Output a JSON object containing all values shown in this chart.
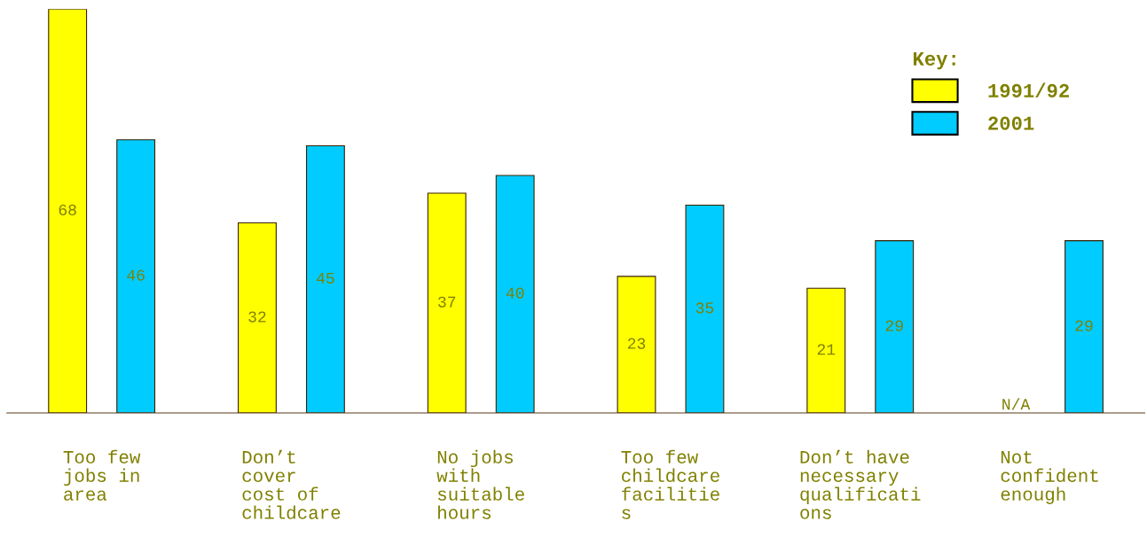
{
  "chart_data": {
    "type": "bar",
    "categories": [
      "Too few\njobs in\narea",
      "Don’t\ncover\ncost of\nchildcare",
      "No jobs\nwith\nsuitable\nhours",
      "Too few\nchildcare\nfacilitie\ns",
      "Don’t have\nnecessary\nqualificati\nons",
      "Not\nconfident\nenough"
    ],
    "series": [
      {
        "name": "1991/92",
        "color": "#ffff00",
        "values": [
          68,
          32,
          37,
          23,
          21,
          null
        ],
        "value_labels": [
          "68",
          "32",
          "37",
          "23",
          "21",
          "N/A"
        ]
      },
      {
        "name": "2001",
        "color": "#00ccff",
        "values": [
          46,
          45,
          40,
          35,
          29,
          29
        ],
        "value_labels": [
          "46",
          "45",
          "40",
          "35",
          "29",
          "29"
        ]
      }
    ],
    "legend": "top right",
    "legend_title": "Key:",
    "grid": false
  }
}
